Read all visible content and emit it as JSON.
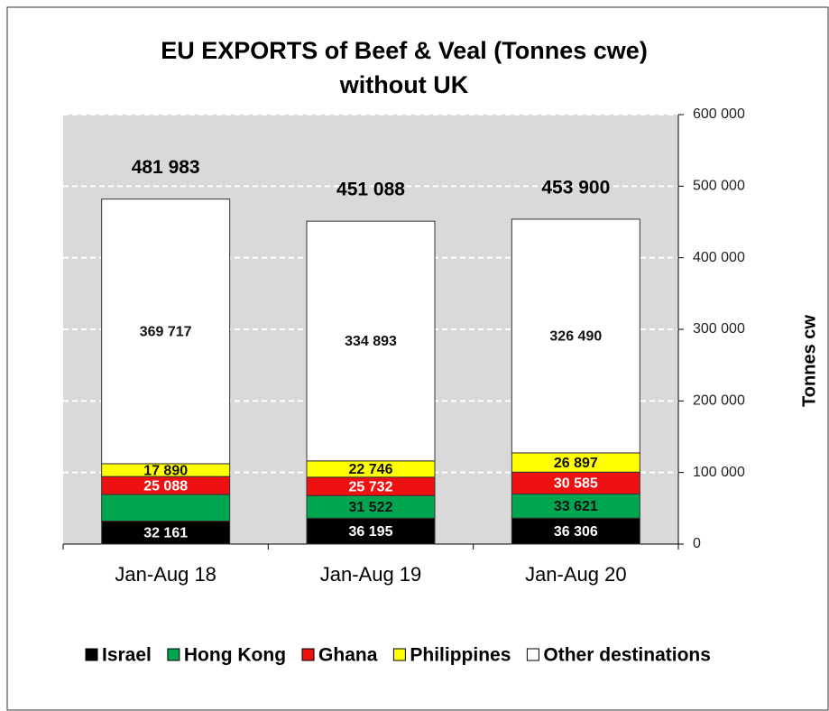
{
  "chart_data": {
    "type": "stacked_bar",
    "title": "EU EXPORTS of Beef & Veal (Tonnes cwe)",
    "subtitle": "without UK",
    "y_axis_label": "Tonnes cw",
    "categories": [
      "Jan-Aug 18",
      "Jan-Aug 19",
      "Jan-Aug 20"
    ],
    "series": [
      {
        "name": "Israel",
        "color": "#000000",
        "label_color": "#ffffff",
        "values": [
          32161,
          36195,
          36306
        ],
        "value_labels": [
          "32 161",
          "36 195",
          "36 306"
        ]
      },
      {
        "name": "Hong Kong",
        "color": "#00a550",
        "label_color": "#111111",
        "values": [
          37127,
          31522,
          33621
        ],
        "value_labels": [
          null,
          "31 522",
          "33 621"
        ]
      },
      {
        "name": "Ghana",
        "color": "#ee1111",
        "label_color": "#ffffff",
        "values": [
          25088,
          25732,
          30585
        ],
        "value_labels": [
          "25 088",
          "25 732",
          "30 585"
        ]
      },
      {
        "name": "Philippines",
        "color": "#ffff00",
        "label_color": "#111111",
        "values": [
          17890,
          22746,
          26897
        ],
        "value_labels": [
          "17 890",
          "22 746",
          "26 897"
        ]
      },
      {
        "name": "Other destinations",
        "color": "#ffffff",
        "label_color": "#111111",
        "values": [
          369717,
          334893,
          326490
        ],
        "value_labels": [
          "369 717",
          "334 893",
          "326 490"
        ]
      }
    ],
    "totals": [
      481983,
      451088,
      453900
    ],
    "total_labels": [
      "481 983",
      "451 088",
      "453 900"
    ],
    "ylim": [
      0,
      600000
    ],
    "yticks": [
      0,
      {
        "value": 100000,
        "label": "100 000"
      },
      {
        "value": 200000,
        "label": "200 000"
      },
      {
        "value": 300000,
        "label": "300 000"
      },
      {
        "value": 400000,
        "label": "400 000"
      },
      {
        "value": 500000,
        "label": "500 000"
      },
      {
        "value": 600000,
        "label": "600 000"
      }
    ],
    "grid": true,
    "legend": "bottom"
  }
}
